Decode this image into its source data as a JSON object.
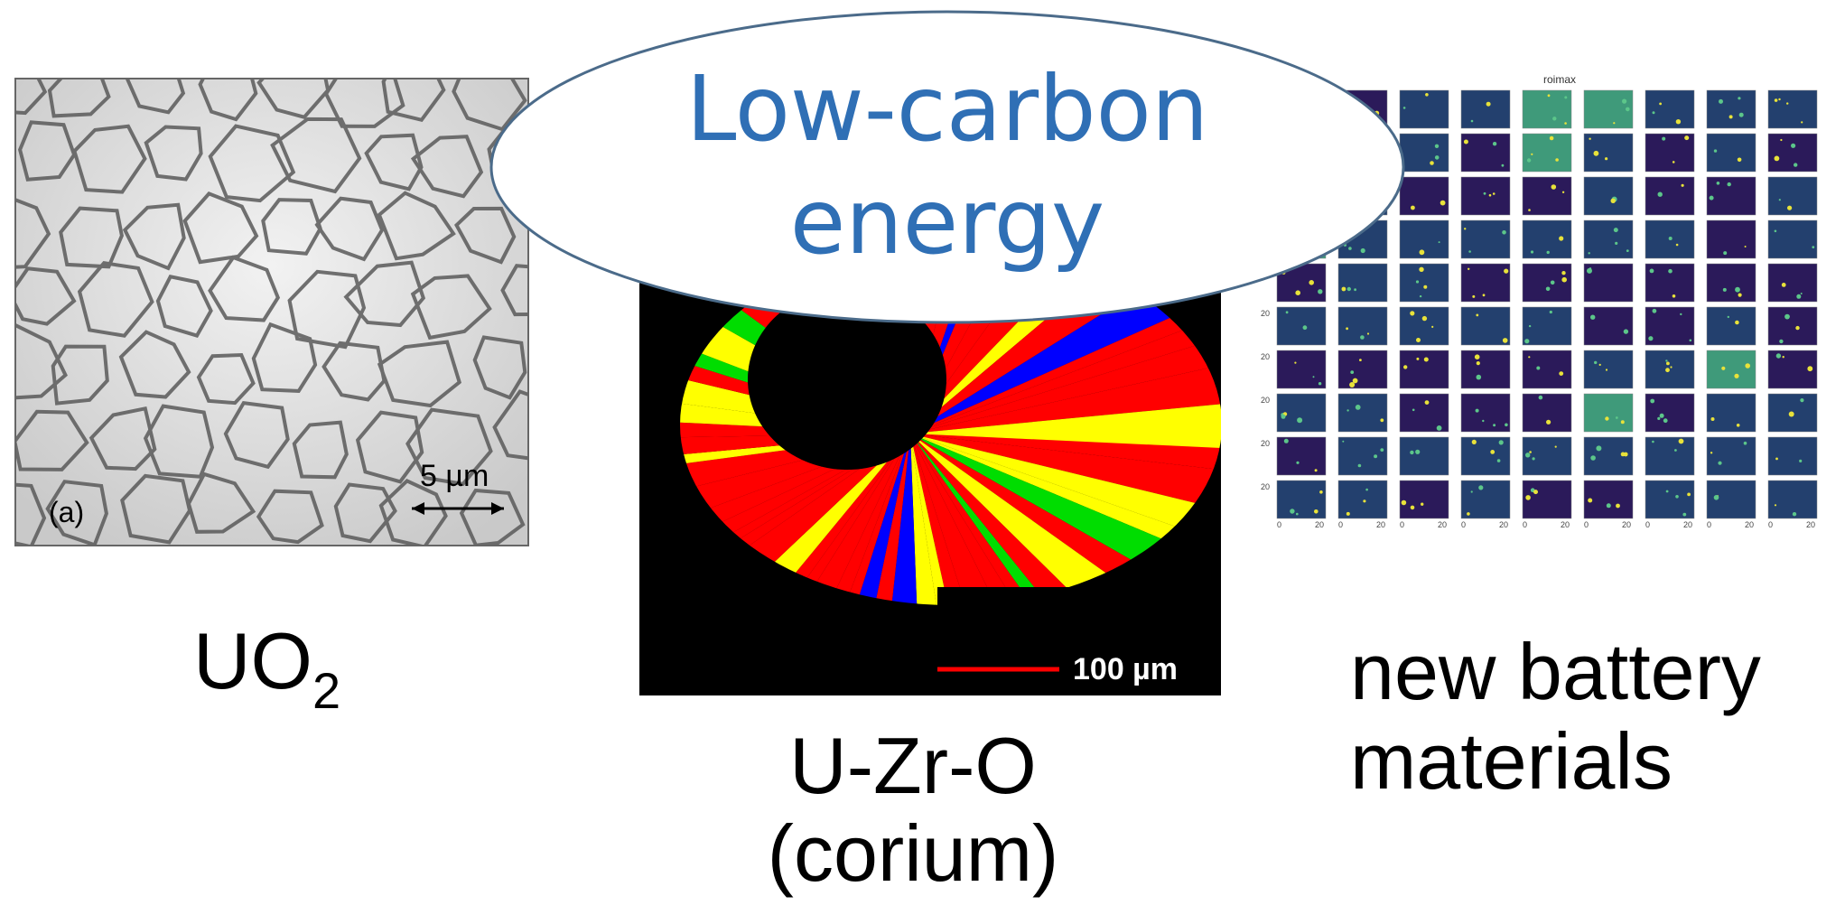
{
  "banner": {
    "line1": "Low-carbon",
    "line2": "energy"
  },
  "panels": {
    "uo2": {
      "panel_label": "(a)",
      "scale_bar": "5 µm",
      "caption_main": "UO",
      "caption_sub": "2"
    },
    "corium": {
      "scale_bar": "100 µm",
      "caption_line1": "U-Zr-O",
      "caption_line2": "(corium)"
    },
    "battery": {
      "plot_title": "roimax",
      "tick_20": "20",
      "tick_0": "0",
      "caption_line1": "new battery",
      "caption_line2": "materials"
    }
  },
  "colors": {
    "accent_text": "#2f6fb5",
    "ellipse_stroke": "#4b6b8a",
    "corium_red": "#ff0000",
    "corium_green": "#00dd00",
    "corium_blue": "#0000ff",
    "corium_yellow": "#ffff00",
    "heatmap_bg": "#2b1a5a"
  }
}
